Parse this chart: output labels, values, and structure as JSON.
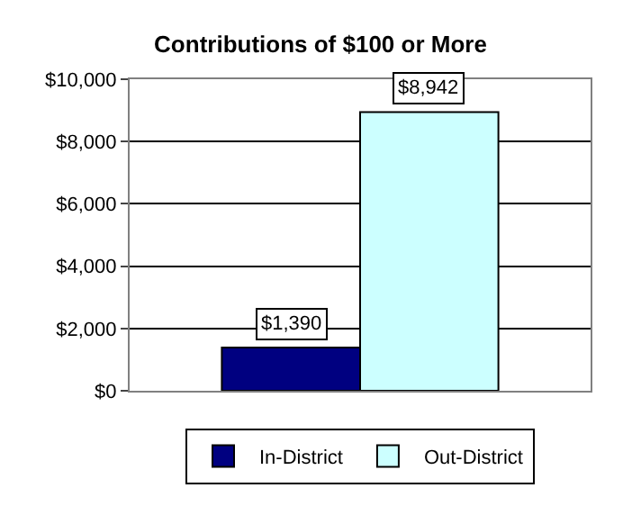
{
  "chart_data": {
    "type": "bar",
    "title": "Contributions of $100 or More",
    "categories": [
      null
    ],
    "series": [
      {
        "name": "In-District",
        "color": "#000080",
        "values": [
          1390
        ],
        "value_labels": [
          "$1,390"
        ]
      },
      {
        "name": "Out-District",
        "color": "#ccffff",
        "values": [
          8942
        ],
        "value_labels": [
          "$8,942"
        ]
      }
    ],
    "ylim": [
      0,
      10000
    ],
    "yticks": [
      {
        "value": 0,
        "label": "$0"
      },
      {
        "value": 2000,
        "label": "$2,000"
      },
      {
        "value": 4000,
        "label": "$4,000"
      },
      {
        "value": 6000,
        "label": "$6,000"
      },
      {
        "value": 8000,
        "label": "$8,000"
      },
      {
        "value": 10000,
        "label": "$10,000"
      }
    ],
    "grid": "y",
    "legend": "bottom"
  }
}
